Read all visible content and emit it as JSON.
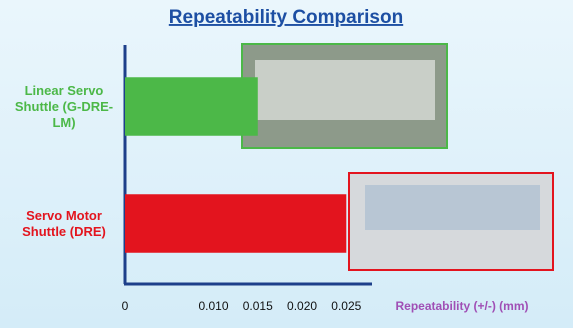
{
  "chart_data": {
    "type": "bar",
    "orientation": "horizontal",
    "title": "Repeatability Comparison",
    "categories": [
      "Linear Servo Shuttle (G-DRE-LM)",
      "Servo Motor Shuttle (DRE)"
    ],
    "values": [
      0.015,
      0.025
    ],
    "colors": [
      "#4cb848",
      "#e3141e"
    ],
    "xlabel": "Repeatability (+/-) (mm)",
    "xlim": [
      0,
      0.027
    ],
    "xticks": [
      0,
      {
        "value": 0.01,
        "label": "0.010"
      },
      0.015,
      {
        "value": 0.02,
        "label": "0.020"
      },
      0.025
    ],
    "grid": false
  }
}
